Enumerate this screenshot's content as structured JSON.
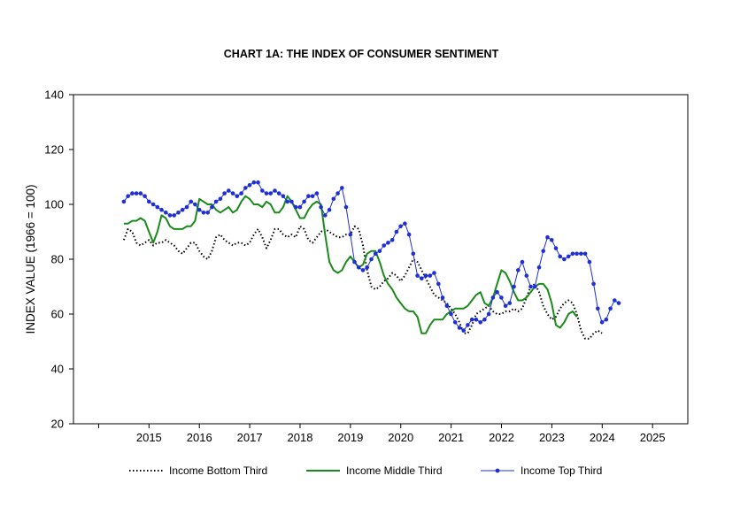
{
  "chart_data": {
    "type": "line",
    "title": "CHART 1A: THE INDEX OF CONSUMER SENTIMENT",
    "xlabel": "",
    "ylabel": "INDEX VALUE (1966 = 100)",
    "ylim": [
      20,
      140
    ],
    "yticks": [
      "20",
      "40",
      "60",
      "80",
      "100",
      "120",
      "140"
    ],
    "xlim": [
      2014,
      2026.2
    ],
    "xticks": [
      "2015",
      "2016",
      "2017",
      "2018",
      "2019",
      "2020",
      "2021",
      "2022",
      "2023",
      "2024",
      "2025"
    ],
    "grid": false,
    "legend_position": "bottom",
    "colors": {
      "bottom": "#000000",
      "middle": "#1a8a1a",
      "top": "#1f2fd6",
      "axis": "#000000"
    },
    "x_start": 2015.0,
    "x_step": 0.0833,
    "series": [
      {
        "name": "Income Bottom Third",
        "style": "dotted",
        "values": [
          87,
          91,
          90,
          86,
          85,
          86,
          87,
          85,
          86,
          86,
          87,
          86,
          85,
          83,
          82,
          84,
          86,
          86,
          83,
          81,
          80,
          83,
          88,
          89,
          87,
          86,
          85,
          86,
          86,
          85,
          86,
          89,
          91,
          88,
          84,
          87,
          91,
          91,
          89,
          88,
          89,
          88,
          92,
          91,
          87,
          86,
          88,
          90,
          91,
          90,
          89,
          88,
          88,
          89,
          89,
          92,
          91,
          85,
          76,
          70,
          69,
          70,
          72,
          73,
          75,
          74,
          72,
          74,
          77,
          80,
          79,
          76,
          73,
          70,
          67,
          66,
          65,
          64,
          62,
          60,
          57,
          53,
          53,
          56,
          60,
          61,
          62,
          63,
          61,
          60,
          60,
          61,
          61,
          62,
          61,
          62,
          66,
          70,
          71,
          68,
          63,
          60,
          58,
          59,
          62,
          64,
          65,
          64,
          60,
          54,
          51,
          51,
          53,
          54,
          53
        ]
      },
      {
        "name": "Income Middle Third",
        "style": "solid",
        "values": [
          93,
          93,
          94,
          94,
          95,
          94,
          90,
          86,
          90,
          96,
          95,
          92,
          91,
          91,
          91,
          92,
          92,
          94,
          102,
          101,
          100,
          100,
          98,
          97,
          98,
          99,
          97,
          98,
          101,
          103,
          102,
          100,
          100,
          99,
          101,
          100,
          97,
          97,
          99,
          103,
          101,
          98,
          95,
          95,
          98,
          100,
          101,
          100,
          89,
          79,
          76,
          75,
          76,
          79,
          81,
          79,
          77,
          78,
          82,
          83,
          83,
          79,
          74,
          71,
          69,
          66,
          64,
          62,
          61,
          61,
          59,
          53,
          53,
          56,
          58,
          58,
          58,
          60,
          61,
          62,
          62,
          62,
          63,
          65,
          67,
          68,
          64,
          63,
          66,
          71,
          76,
          75,
          72,
          68,
          65,
          65,
          66,
          68,
          70,
          71,
          71,
          69,
          64,
          56,
          55,
          57,
          60,
          61,
          59
        ]
      },
      {
        "name": "Income Top Third",
        "style": "solid-markers",
        "values": [
          101,
          103,
          104,
          104,
          104,
          103,
          101,
          100,
          99,
          98,
          97,
          96,
          96,
          97,
          98,
          99,
          101,
          100,
          98,
          97,
          97,
          99,
          101,
          102,
          104,
          105,
          104,
          103,
          104,
          106,
          107,
          108,
          108,
          105,
          104,
          104,
          105,
          104,
          103,
          101,
          101,
          99,
          99,
          101,
          103,
          103,
          104,
          99,
          96,
          98,
          102,
          104,
          106,
          99,
          89,
          79,
          77,
          76,
          77,
          80,
          82,
          83,
          85,
          86,
          87,
          90,
          92,
          93,
          89,
          82,
          74,
          73,
          74,
          74,
          75,
          71,
          66,
          63,
          60,
          57,
          55,
          54,
          56,
          58,
          58,
          57,
          58,
          60,
          66,
          68,
          66,
          63,
          64,
          70,
          76,
          79,
          74,
          70,
          70,
          77,
          83,
          88,
          87,
          84,
          81,
          80,
          81,
          82,
          82,
          82,
          82,
          79,
          71,
          62,
          57,
          58,
          62,
          65,
          64
        ]
      }
    ]
  }
}
